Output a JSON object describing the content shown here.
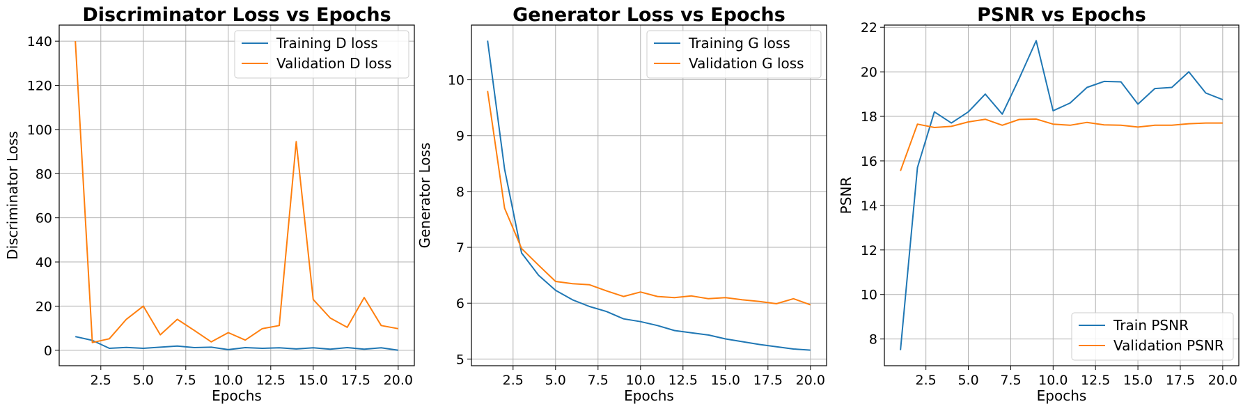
{
  "chart_data": [
    {
      "type": "line",
      "title": "Discriminator Loss vs Epochs",
      "xlabel": "Epochs",
      "ylabel": "Discriminator Loss",
      "xlim": [
        0.05,
        20.95
      ],
      "ylim": [
        -7.0,
        147.3
      ],
      "xticks": [
        2.5,
        5.0,
        7.5,
        10.0,
        12.5,
        15.0,
        17.5,
        20.0
      ],
      "xtick_labels": [
        "2.5",
        "5.0",
        "7.5",
        "10.0",
        "12.5",
        "15.0",
        "17.5",
        "20.0"
      ],
      "yticks": [
        0,
        20,
        40,
        60,
        80,
        100,
        120,
        140
      ],
      "ytick_labels": [
        "0",
        "20",
        "40",
        "60",
        "80",
        "100",
        "120",
        "140"
      ],
      "grid": true,
      "legend": "top-right",
      "x": [
        1,
        2,
        3,
        4,
        5,
        6,
        7,
        8,
        9,
        10,
        11,
        12,
        13,
        14,
        15,
        16,
        17,
        18,
        19,
        20
      ],
      "series": [
        {
          "name": "Training D loss",
          "color": "#1f77b4",
          "values": [
            6.2,
            4.5,
            0.9,
            1.3,
            0.9,
            1.4,
            1.9,
            1.2,
            1.4,
            0.3,
            1.2,
            0.9,
            1.1,
            0.6,
            1.1,
            0.5,
            1.2,
            0.5,
            1.1,
            0.0
          ]
        },
        {
          "name": "Validation D loss",
          "color": "#ff7f0e",
          "values": [
            140,
            3.5,
            5.2,
            14.0,
            20.0,
            7.0,
            14.0,
            9.0,
            3.8,
            8.0,
            4.6,
            9.8,
            11.2,
            94.5,
            23.0,
            14.6,
            10.4,
            23.9,
            11.2,
            9.8
          ]
        }
      ]
    },
    {
      "type": "line",
      "title": "Generator Loss vs Epochs",
      "xlabel": "Epochs",
      "ylabel": "Generator Loss",
      "xlim": [
        0.05,
        20.95
      ],
      "ylim": [
        4.88,
        10.98
      ],
      "xticks": [
        2.5,
        5.0,
        7.5,
        10.0,
        12.5,
        15.0,
        17.5,
        20.0
      ],
      "xtick_labels": [
        "2.5",
        "5.0",
        "7.5",
        "10.0",
        "12.5",
        "15.0",
        "17.5",
        "20.0"
      ],
      "yticks": [
        5,
        6,
        7,
        8,
        9,
        10
      ],
      "ytick_labels": [
        "5",
        "6",
        "7",
        "8",
        "9",
        "10"
      ],
      "grid": true,
      "legend": "top-right",
      "x": [
        1,
        2,
        3,
        4,
        5,
        6,
        7,
        8,
        9,
        10,
        11,
        12,
        13,
        14,
        15,
        16,
        17,
        18,
        19,
        20
      ],
      "series": [
        {
          "name": "Training G loss",
          "color": "#1f77b4",
          "values": [
            10.7,
            8.4,
            6.9,
            6.5,
            6.23,
            6.06,
            5.94,
            5.85,
            5.72,
            5.67,
            5.6,
            5.51,
            5.47,
            5.43,
            5.36,
            5.31,
            5.26,
            5.22,
            5.18,
            5.16
          ]
        },
        {
          "name": "Validation G loss",
          "color": "#ff7f0e",
          "values": [
            9.8,
            7.7,
            6.98,
            6.68,
            6.39,
            6.35,
            6.33,
            6.22,
            6.12,
            6.2,
            6.12,
            6.1,
            6.13,
            6.08,
            6.1,
            6.06,
            6.03,
            5.99,
            6.08,
            5.97
          ]
        }
      ]
    },
    {
      "type": "line",
      "title": "PSNR vs Epochs",
      "xlabel": "Epochs",
      "ylabel": "PSNR",
      "xlim": [
        0.05,
        20.95
      ],
      "ylim": [
        6.8,
        22.1
      ],
      "xticks": [
        2.5,
        5.0,
        7.5,
        10.0,
        12.5,
        15.0,
        17.5,
        20.0
      ],
      "xtick_labels": [
        "2.5",
        "5.0",
        "7.5",
        "10.0",
        "12.5",
        "15.0",
        "17.5",
        "20.0"
      ],
      "yticks": [
        8,
        10,
        12,
        14,
        16,
        18,
        20,
        22
      ],
      "ytick_labels": [
        "8",
        "10",
        "12",
        "14",
        "16",
        "18",
        "20",
        "22"
      ],
      "grid": true,
      "legend": "bottom-right",
      "x": [
        1,
        2,
        3,
        4,
        5,
        6,
        7,
        8,
        9,
        10,
        11,
        12,
        13,
        14,
        15,
        16,
        17,
        18,
        19,
        20
      ],
      "series": [
        {
          "name": "Train PSNR",
          "color": "#1f77b4",
          "values": [
            7.5,
            15.7,
            18.2,
            17.7,
            18.2,
            19.0,
            18.1,
            19.7,
            21.4,
            18.25,
            18.6,
            19.3,
            19.57,
            19.55,
            18.55,
            19.25,
            19.3,
            20.0,
            19.05,
            18.75
          ]
        },
        {
          "name": "Validation PSNR",
          "color": "#ff7f0e",
          "values": [
            15.55,
            17.65,
            17.5,
            17.55,
            17.75,
            17.87,
            17.6,
            17.86,
            17.88,
            17.65,
            17.6,
            17.73,
            17.62,
            17.6,
            17.52,
            17.6,
            17.6,
            17.67,
            17.7,
            17.7
          ]
        }
      ]
    }
  ]
}
